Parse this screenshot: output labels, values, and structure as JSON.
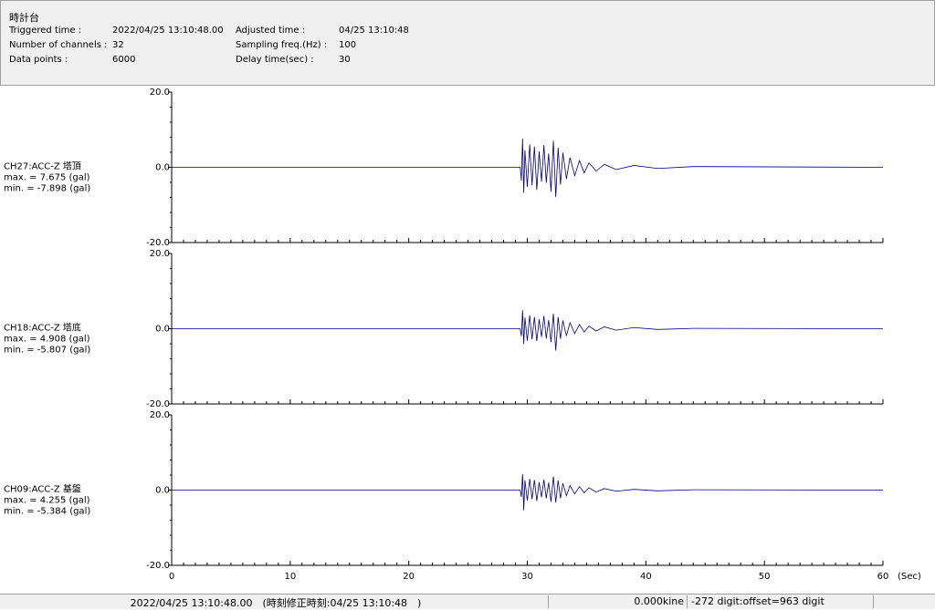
{
  "header": {
    "title": "時計台",
    "fields": [
      {
        "label": "Triggered time :",
        "value": "2022/04/25 13:10:48.00"
      },
      {
        "label": "Number of channels :",
        "value": "32"
      },
      {
        "label": "Data points :",
        "value": "6000"
      },
      {
        "label": "Adjusted time :",
        "value": "04/25 13:10:48"
      },
      {
        "label": "Sampling freq.(Hz) :",
        "value": "100"
      },
      {
        "label": "Delay time(sec) :",
        "value": "30"
      }
    ]
  },
  "footer": [
    "2022/04/25 13:10:48.00　(時刻修正時刻:04/25 13:10:48　)",
    "0.000kine",
    "-272 digit:offset=963 digit"
  ],
  "chart_data": [
    {
      "type": "line",
      "channel": "CH27:ACC-Z 塔頂",
      "max_label": "max. = 7.675 (gal)",
      "min_label": "min. = -7.898 (gal)",
      "color": "#000080",
      "ylim": [
        -20,
        20
      ],
      "yticks": [
        {
          "value": -20,
          "label": "-20.0"
        },
        {
          "value": 0,
          "label": "0.0"
        },
        {
          "value": 20,
          "label": "20.0"
        }
      ],
      "x": [
        0,
        29.4,
        29.5,
        29.6,
        29.7,
        29.8,
        30.0,
        30.2,
        30.4,
        30.6,
        30.8,
        31.0,
        31.2,
        31.4,
        31.6,
        31.8,
        32.0,
        32.2,
        32.4,
        32.6,
        32.8,
        33.0,
        33.3,
        33.6,
        34.0,
        34.4,
        34.8,
        35.2,
        35.8,
        36.5,
        37.5,
        39,
        41,
        44,
        60
      ],
      "values": [
        0,
        0,
        -3.5,
        7.675,
        -6.8,
        4.5,
        -5.2,
        6.1,
        -4.8,
        5.5,
        -6.0,
        4.2,
        -3.8,
        5.9,
        -4.1,
        3.7,
        -6.5,
        7.1,
        -7.898,
        5.2,
        -4.6,
        3.9,
        -3.1,
        2.6,
        -2.2,
        1.8,
        -1.5,
        1.2,
        -1.0,
        0.8,
        -0.6,
        0.5,
        -0.3,
        0.2,
        0
      ]
    },
    {
      "type": "line",
      "channel": "CH18:ACC-Z 塔底",
      "max_label": "max. = 4.908 (gal)",
      "min_label": "min. = -5.807 (gal)",
      "color": "#000080",
      "ylim": [
        -20,
        20
      ],
      "yticks": [
        {
          "value": -20,
          "label": "-20.0"
        },
        {
          "value": 0,
          "label": "0.0"
        },
        {
          "value": 20,
          "label": "20.0"
        }
      ],
      "x": [
        0,
        29.4,
        29.5,
        29.6,
        29.7,
        29.8,
        30.0,
        30.2,
        30.4,
        30.6,
        30.8,
        31.0,
        31.2,
        31.4,
        31.6,
        31.8,
        32.0,
        32.2,
        32.4,
        32.6,
        32.8,
        33.0,
        33.3,
        33.6,
        34.0,
        34.4,
        34.8,
        35.2,
        35.8,
        36.5,
        37.5,
        39,
        41,
        44,
        60
      ],
      "values": [
        0,
        0,
        -2.0,
        4.908,
        -4.1,
        3.0,
        -3.2,
        3.5,
        -2.8,
        3.1,
        -3.3,
        2.5,
        -2.2,
        3.4,
        -2.6,
        2.3,
        -3.6,
        4.0,
        -5.807,
        3.1,
        -2.7,
        2.2,
        -1.9,
        1.6,
        -1.3,
        1.1,
        -0.9,
        0.7,
        -0.6,
        0.5,
        -0.4,
        0.3,
        -0.2,
        0.1,
        0
      ]
    },
    {
      "type": "line",
      "channel": "CH09:ACC-Z 基盤",
      "max_label": "max. = 4.255 (gal)",
      "min_label": "min. = -5.384 (gal)",
      "color": "#000080",
      "ylim": [
        -20,
        20
      ],
      "yticks": [
        {
          "value": -20,
          "label": "-20.0"
        },
        {
          "value": 0,
          "label": "0.0"
        },
        {
          "value": 20,
          "label": "20.0"
        }
      ],
      "xlim": [
        0,
        60
      ],
      "xticks": [
        0,
        10,
        20,
        30,
        40,
        50,
        60
      ],
      "x_label": "(Sec)",
      "x": [
        0,
        29.4,
        29.5,
        29.6,
        29.7,
        29.8,
        30.0,
        30.2,
        30.4,
        30.6,
        30.8,
        31.0,
        31.2,
        31.4,
        31.6,
        31.8,
        32.0,
        32.2,
        32.4,
        32.6,
        32.8,
        33.0,
        33.3,
        33.6,
        34.0,
        34.4,
        34.8,
        35.2,
        35.8,
        36.5,
        37.5,
        39,
        41,
        44,
        60
      ],
      "values": [
        0,
        0,
        -1.8,
        4.255,
        -5.384,
        2.6,
        -2.8,
        3.0,
        -2.4,
        2.7,
        -2.9,
        2.1,
        -1.9,
        2.8,
        -2.2,
        2.0,
        -3.1,
        3.6,
        -3.3,
        2.6,
        -2.2,
        1.8,
        -1.5,
        1.2,
        -1.0,
        0.9,
        -0.7,
        0.6,
        -0.5,
        0.4,
        -0.3,
        0.2,
        -0.2,
        0.1,
        0
      ]
    }
  ]
}
